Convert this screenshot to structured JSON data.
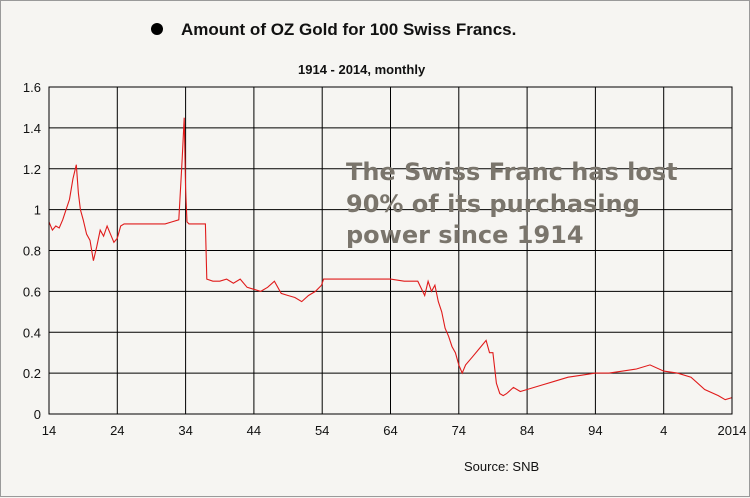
{
  "chart_data": {
    "type": "line",
    "title": "Amount of OZ Gold for 100 Swiss Francs.",
    "subtitle": "1914 -  2014, monthly",
    "source": "Source: SNB",
    "annotation": [
      "The Swiss Franc has lost",
      "90% of its purchasing",
      "power since 1914"
    ],
    "x_ticks": [
      "14",
      "24",
      "34",
      "44",
      "54",
      "64",
      "74",
      "84",
      "94",
      "4",
      "2014"
    ],
    "y_ticks": [
      "0",
      "0.2",
      "0.4",
      "0.6",
      "0.8",
      "1",
      "1.2",
      "1.4",
      "1.6"
    ],
    "xlim": [
      1914,
      2014
    ],
    "ylim": [
      0,
      1.6
    ],
    "grid": true,
    "colors": {
      "line": "#e01b1b",
      "marker": "#000000"
    },
    "series": [
      {
        "x": [
          1914,
          1914.5,
          1915,
          1915.5,
          1916,
          1916.5,
          1917,
          1917.5,
          1918,
          1918.3,
          1918.6,
          1919,
          1919.5,
          1920,
          1920.5,
          1921,
          1921.5,
          1922,
          1922.5,
          1923,
          1923.5,
          1924,
          1924.5,
          1925,
          1926,
          1927,
          1928,
          1929,
          1930,
          1931,
          1932,
          1933,
          1933.5,
          1933.8,
          1934,
          1934.2,
          1934.5,
          1935,
          1936,
          1936.9,
          1937.1,
          1938,
          1939,
          1940,
          1941,
          1942,
          1943,
          1944,
          1945,
          1946,
          1947,
          1948,
          1949,
          1950,
          1951,
          1952,
          1953,
          1953.9,
          1954.2,
          1956,
          1958,
          1960,
          1962,
          1964,
          1966,
          1968,
          1969,
          1969.5,
          1970,
          1970.5,
          1971,
          1971.5,
          1972,
          1972.5,
          1973,
          1973.5,
          1974,
          1974.5,
          1975,
          1976,
          1977,
          1978,
          1978.5,
          1979,
          1979.5,
          1980,
          1980.5,
          1981,
          1982,
          1983,
          1984,
          1986,
          1988,
          1990,
          1992,
          1994,
          1996,
          1998,
          2000,
          2002,
          2004,
          2006,
          2008,
          2010,
          2012,
          2013,
          2014
        ],
        "y": [
          0.94,
          0.9,
          0.92,
          0.91,
          0.95,
          1.0,
          1.05,
          1.15,
          1.22,
          1.08,
          1.0,
          0.95,
          0.88,
          0.85,
          0.75,
          0.82,
          0.9,
          0.87,
          0.92,
          0.88,
          0.84,
          0.86,
          0.92,
          0.93,
          0.93,
          0.93,
          0.93,
          0.93,
          0.93,
          0.93,
          0.94,
          0.95,
          1.25,
          1.45,
          1.1,
          0.94,
          0.93,
          0.93,
          0.93,
          0.93,
          0.66,
          0.65,
          0.65,
          0.66,
          0.64,
          0.66,
          0.62,
          0.61,
          0.6,
          0.62,
          0.65,
          0.59,
          0.58,
          0.57,
          0.55,
          0.58,
          0.6,
          0.63,
          0.66,
          0.66,
          0.66,
          0.66,
          0.66,
          0.66,
          0.65,
          0.65,
          0.58,
          0.65,
          0.6,
          0.63,
          0.55,
          0.5,
          0.42,
          0.38,
          0.33,
          0.3,
          0.24,
          0.2,
          0.24,
          0.28,
          0.32,
          0.36,
          0.3,
          0.3,
          0.15,
          0.1,
          0.09,
          0.1,
          0.13,
          0.11,
          0.12,
          0.14,
          0.16,
          0.18,
          0.19,
          0.2,
          0.2,
          0.21,
          0.22,
          0.24,
          0.21,
          0.2,
          0.18,
          0.12,
          0.09,
          0.07,
          0.08
        ]
      }
    ]
  }
}
